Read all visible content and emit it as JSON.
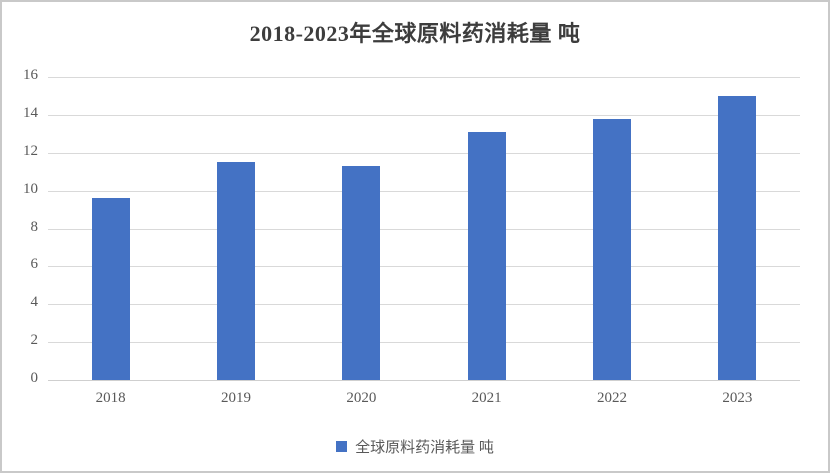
{
  "chart_data": {
    "type": "bar",
    "title": "2018-2023年全球原料药消耗量 吨",
    "categories": [
      "2018",
      "2019",
      "2020",
      "2021",
      "2022",
      "2023"
    ],
    "series": [
      {
        "name": "全球原料药消耗量 吨",
        "values": [
          9.6,
          11.5,
          11.3,
          13.1,
          13.8,
          15.0
        ]
      }
    ],
    "ylim": [
      0,
      16
    ],
    "ytick_step": 2,
    "ytick_labels": [
      "0",
      "2",
      "4",
      "6",
      "8",
      "10",
      "12",
      "14",
      "16"
    ],
    "grid": true,
    "legend_position": "bottom",
    "legend_label": "全球原料药消耗量 吨",
    "colors": {
      "bar": "#4472c4",
      "gridline": "#d9d9d9",
      "axis_text": "#595959",
      "title_text": "#3d3d3d",
      "frame_border": "#c9c9c9",
      "background": "#ffffff"
    }
  }
}
